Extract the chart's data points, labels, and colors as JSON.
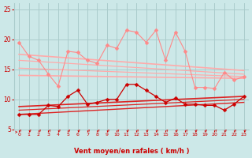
{
  "xlabel": "Vent moyen/en rafales ( km/h )",
  "xlim": [
    -0.5,
    23.5
  ],
  "ylim": [
    5,
    26
  ],
  "yticks": [
    5,
    10,
    15,
    20,
    25
  ],
  "xticks": [
    0,
    1,
    2,
    3,
    4,
    5,
    6,
    7,
    8,
    9,
    10,
    11,
    12,
    13,
    14,
    15,
    16,
    17,
    18,
    19,
    20,
    21,
    22,
    23
  ],
  "bg_color": "#cce8e8",
  "grid_color": "#aacccc",
  "x": [
    0,
    1,
    2,
    3,
    4,
    5,
    6,
    7,
    8,
    9,
    10,
    11,
    12,
    13,
    14,
    15,
    16,
    17,
    18,
    19,
    20,
    21,
    22,
    23
  ],
  "line_rafales_data": [
    19.5,
    17.2,
    16.5,
    14.2,
    12.2,
    18.0,
    17.8,
    16.5,
    16.0,
    19.0,
    18.5,
    21.5,
    21.2,
    19.5,
    21.5,
    16.5,
    21.2,
    18.0,
    12.0,
    12.0,
    11.8,
    14.5,
    13.2,
    13.8
  ],
  "line_rafales_color": "#ff8888",
  "line_rafales_markersize": 2.5,
  "trend_lines": [
    {
      "start": 17.5,
      "end": 14.8,
      "lw": 1.2
    },
    {
      "start": 16.5,
      "end": 14.2,
      "lw": 0.9
    },
    {
      "start": 15.2,
      "end": 13.8,
      "lw": 0.9
    },
    {
      "start": 14.0,
      "end": 13.5,
      "lw": 1.2
    }
  ],
  "trend_color": "#ffaaaa",
  "line_moyen_data": [
    7.5,
    7.5,
    7.5,
    9.0,
    8.8,
    10.5,
    11.5,
    9.2,
    9.5,
    10.0,
    10.0,
    12.5,
    12.5,
    11.5,
    10.5,
    9.5,
    10.2,
    9.2,
    9.2,
    9.0,
    9.0,
    8.2,
    9.2,
    10.5
  ],
  "line_moyen_color": "#cc0000",
  "line_moyen_markersize": 2.5,
  "trend_moyen_lines": [
    {
      "start": 8.8,
      "end": 10.5,
      "lw": 1.2
    },
    {
      "start": 8.2,
      "end": 10.0,
      "lw": 0.9
    },
    {
      "start": 7.5,
      "end": 9.5,
      "lw": 1.0
    }
  ],
  "trend_moyen_color": "#dd2222",
  "arrow_color": "#cc3333",
  "xlabel_color": "#cc0000",
  "tick_color": "#cc0000"
}
